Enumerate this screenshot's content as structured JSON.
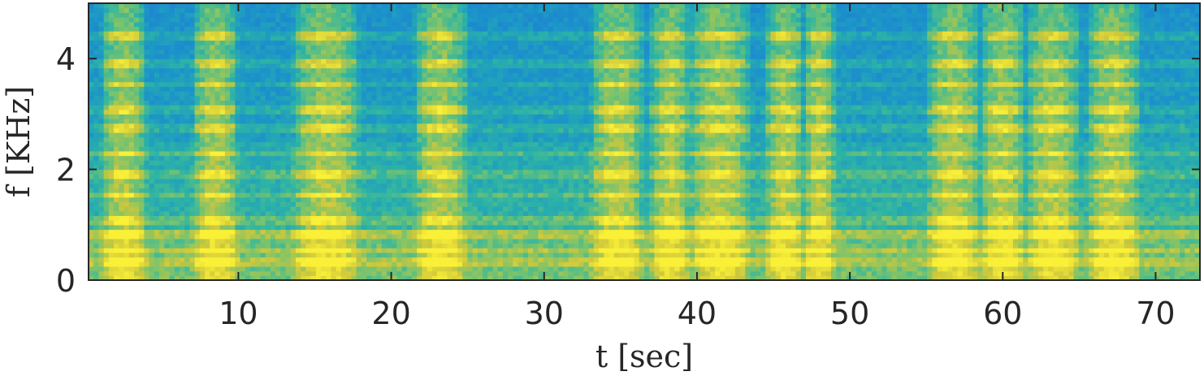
{
  "chart_data": {
    "type": "heatmap",
    "title": "",
    "xlabel": "t [sec]",
    "ylabel": "f [KHz]",
    "xlim": [
      0.2,
      72.9
    ],
    "ylim": [
      0,
      5
    ],
    "x_ticks": [
      10,
      20,
      30,
      40,
      50,
      60,
      70
    ],
    "x_tick_labels": [
      "10",
      "20",
      "30",
      "40",
      "50",
      "60",
      "70"
    ],
    "y_ticks": [
      0,
      2,
      4
    ],
    "y_tick_labels": [
      "0",
      "2",
      "4"
    ],
    "grid": false,
    "colormap": "parula",
    "colors": {
      "low": "#1f7fe0",
      "mid": "#2fb3a0",
      "high": "#f2e23a",
      "peak": "#fbf036",
      "axis": "#262626"
    },
    "high_energy_segments_sec": [
      [
        1.5,
        3.5
      ],
      [
        7.5,
        9.5
      ],
      [
        14.0,
        17.5
      ],
      [
        22.0,
        24.5
      ],
      [
        33.5,
        36.0
      ],
      [
        37.5,
        39.0
      ],
      [
        40.0,
        43.0
      ],
      [
        45.0,
        46.5
      ],
      [
        47.5,
        48.5
      ],
      [
        55.5,
        58.0
      ],
      [
        59.0,
        61.0
      ],
      [
        62.0,
        64.5
      ],
      [
        66.0,
        68.5
      ]
    ],
    "harmonic_bands_khz": [
      0.35,
      0.55,
      0.85,
      1.1,
      1.55,
      1.9,
      2.3,
      2.75,
      3.1,
      3.55,
      3.9,
      4.4
    ]
  }
}
